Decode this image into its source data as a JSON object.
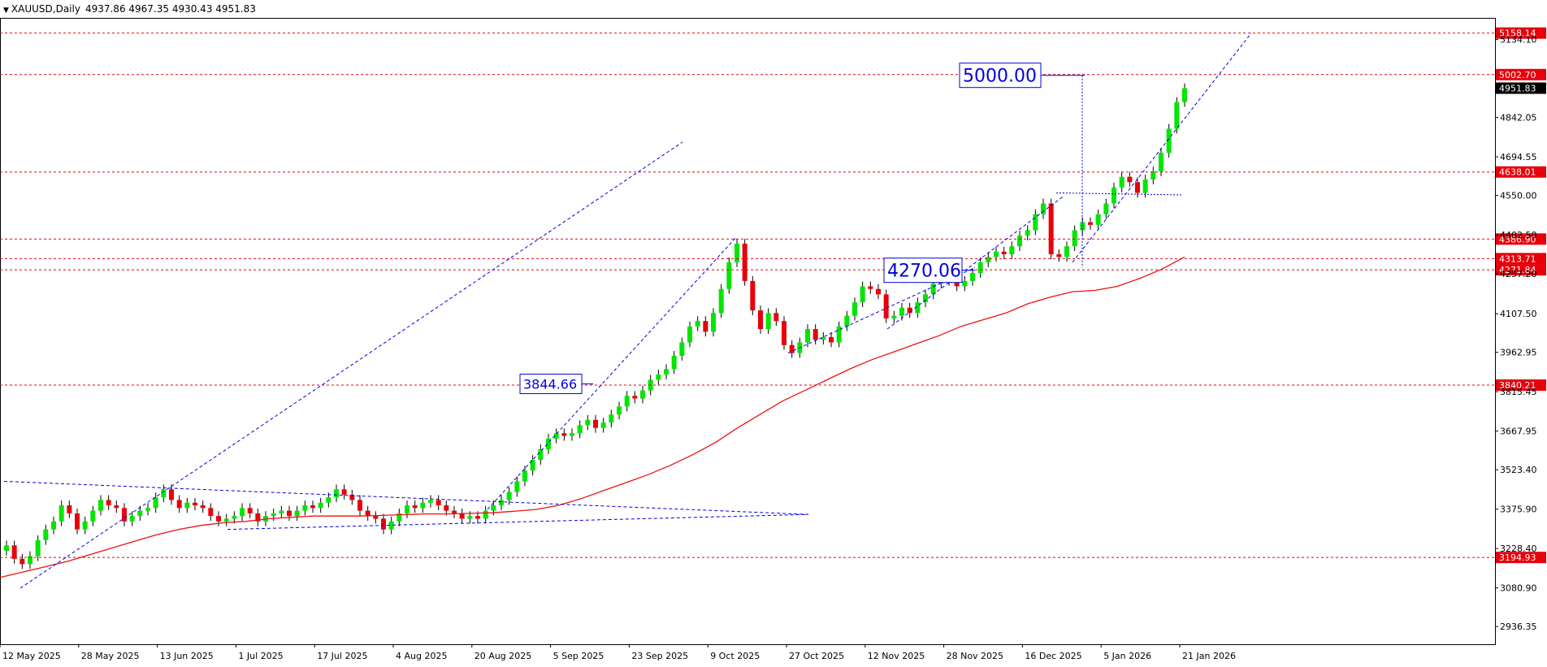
{
  "header": {
    "symbol": "XAUUSD,Daily",
    "ohlc": "4937.86 4967.35 4930.43 4951.83"
  },
  "colors": {
    "bull": "#00e600",
    "bear": "#e8000b",
    "ma": "#ee1111",
    "levels": "#e8000b",
    "trend": "#0000e0",
    "grid_axis": "#000000",
    "current_price_bg": "#000000"
  },
  "chart_data": {
    "type": "candlestick",
    "symbol": "XAUUSD",
    "timeframe": "Daily",
    "x_ticks": [
      "12 May 2025",
      "28 May 2025",
      "13 Jun 2025",
      "1 Jul 2025",
      "17 Jul 2025",
      "4 Aug 2025",
      "20 Aug 2025",
      "5 Sep 2025",
      "23 Sep 2025",
      "9 Oct 2025",
      "27 Oct 2025",
      "12 Nov 2025",
      "28 Nov 2025",
      "16 Dec 2025",
      "5 Jan 2026",
      "21 Jan 2026"
    ],
    "y_ticks": [
      "5134.10",
      "4842.05",
      "4694.55",
      "4550.00",
      "4402.50",
      "4257.20",
      "4107.50",
      "3962.95",
      "3815.45",
      "3667.95",
      "3523.40",
      "3375.90",
      "3228.40",
      "3080.90",
      "2936.35"
    ],
    "ylim": [
      2870,
      5215
    ],
    "current_price": "4951.83",
    "levels": [
      "5158.14",
      "5002.70",
      "4638.01",
      "4386.90",
      "4313.71",
      "4271.84",
      "3840.21",
      "3194.93"
    ],
    "annotations": [
      {
        "text": "5000.00",
        "price": 5000.0
      },
      {
        "text": "4270.06",
        "price": 4270.06
      },
      {
        "text": "3844.66",
        "price": 3844.66
      }
    ],
    "closes": [
      3240,
      3190,
      3170,
      3200,
      3260,
      3300,
      3330,
      3390,
      3360,
      3300,
      3330,
      3370,
      3410,
      3390,
      3380,
      3330,
      3350,
      3370,
      3380,
      3420,
      3450,
      3410,
      3380,
      3400,
      3390,
      3380,
      3350,
      3330,
      3340,
      3350,
      3380,
      3360,
      3330,
      3350,
      3360,
      3370,
      3350,
      3370,
      3390,
      3380,
      3400,
      3420,
      3450,
      3430,
      3410,
      3370,
      3350,
      3340,
      3300,
      3330,
      3360,
      3390,
      3380,
      3400,
      3410,
      3390,
      3370,
      3360,
      3340,
      3350,
      3340,
      3370,
      3390,
      3410,
      3440,
      3480,
      3520,
      3560,
      3600,
      3640,
      3660,
      3650,
      3660,
      3690,
      3710,
      3680,
      3700,
      3730,
      3760,
      3800,
      3790,
      3820,
      3860,
      3880,
      3900,
      3950,
      4000,
      4060,
      4080,
      4040,
      4110,
      4200,
      4300,
      4370,
      4230,
      4120,
      4050,
      4110,
      4080,
      3990,
      3960,
      4000,
      4050,
      4010,
      4020,
      4000,
      4060,
      4100,
      4150,
      4210,
      4200,
      4180,
      4090,
      4100,
      4130,
      4110,
      4150,
      4180,
      4220,
      4250,
      4230,
      4210,
      4230,
      4260,
      4300,
      4320,
      4340,
      4330,
      4360,
      4400,
      4420,
      4480,
      4520,
      4330,
      4320,
      4360,
      4420,
      4450,
      4440,
      4480,
      4520,
      4580,
      4620,
      4600,
      4560,
      4610,
      4640,
      4710,
      4800,
      4900,
      4951.83
    ],
    "ma_series": [
      3120,
      3140,
      3160,
      3180,
      3205,
      3230,
      3255,
      3280,
      3300,
      3315,
      3325,
      3330,
      3340,
      3345,
      3350,
      3350,
      3350,
      3352,
      3355,
      3358,
      3358,
      3360,
      3362,
      3368,
      3375,
      3390,
      3415,
      3445,
      3475,
      3505,
      3540,
      3580,
      3625,
      3680,
      3730,
      3780,
      3820,
      3860,
      3900,
      3935,
      3965,
      3995,
      4025,
      4060,
      4085,
      4110,
      4145,
      4170,
      4190,
      4195,
      4210,
      4240,
      4275,
      4320
    ],
    "ma_start_index": 0
  }
}
